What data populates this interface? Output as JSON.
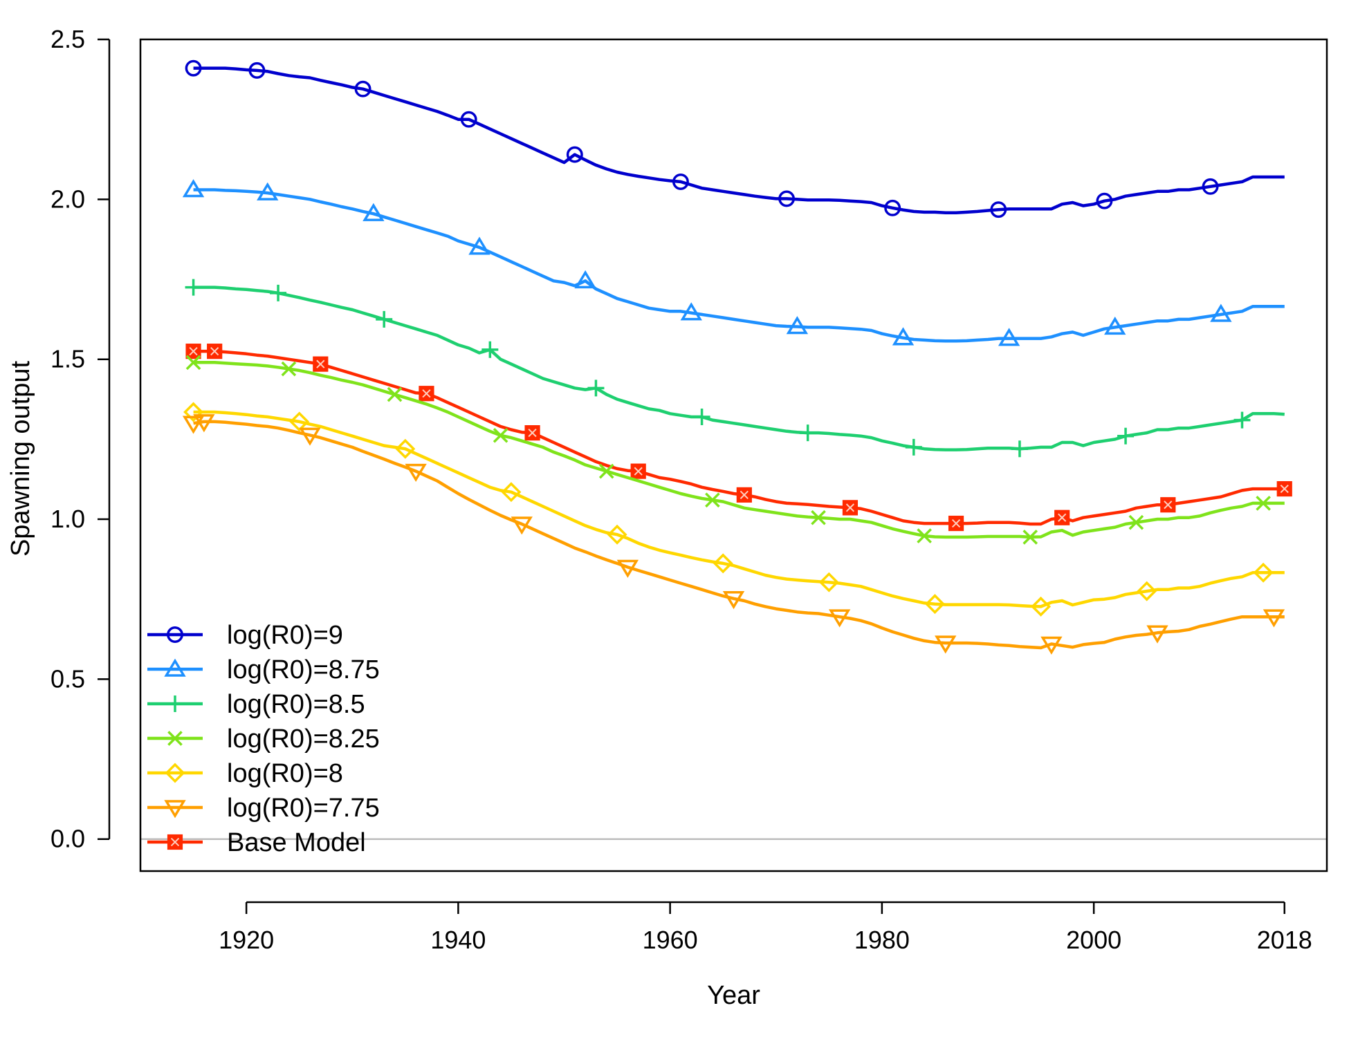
{
  "chart_data": {
    "type": "line",
    "title": "",
    "xlabel": "Year",
    "ylabel": "Spawning output",
    "xlim": [
      1910,
      2022
    ],
    "ylim": [
      -0.1,
      2.5
    ],
    "xticks": [
      1920,
      1940,
      1960,
      1980,
      2000,
      2018
    ],
    "xtick_labels": [
      "1920",
      "1940",
      "1960",
      "1980",
      "2000",
      "2018"
    ],
    "yticks": [
      0,
      0.5,
      1,
      1.5,
      2,
      2.5
    ],
    "ytick_labels": [
      "0.0",
      "0.5",
      "1.0",
      "1.5",
      "2.0",
      "2.5"
    ],
    "reference_line": 0,
    "legend_position": "bottom-left",
    "grid": false,
    "x": [
      1915,
      1916,
      1917,
      1918,
      1919,
      1920,
      1921,
      1922,
      1923,
      1924,
      1925,
      1926,
      1927,
      1928,
      1929,
      1930,
      1931,
      1932,
      1933,
      1934,
      1935,
      1936,
      1937,
      1938,
      1939,
      1940,
      1941,
      1942,
      1943,
      1944,
      1945,
      1946,
      1947,
      1948,
      1949,
      1950,
      1951,
      1952,
      1953,
      1954,
      1955,
      1956,
      1957,
      1958,
      1959,
      1960,
      1961,
      1962,
      1963,
      1964,
      1965,
      1966,
      1967,
      1968,
      1969,
      1970,
      1971,
      1972,
      1973,
      1974,
      1975,
      1976,
      1977,
      1978,
      1979,
      1980,
      1981,
      1982,
      1983,
      1984,
      1985,
      1986,
      1987,
      1988,
      1989,
      1990,
      1991,
      1992,
      1993,
      1994,
      1995,
      1996,
      1997,
      1998,
      1999,
      2000,
      2001,
      2002,
      2003,
      2004,
      2005,
      2006,
      2007,
      2008,
      2009,
      2010,
      2011,
      2012,
      2013,
      2014,
      2015,
      2016,
      2017,
      2018
    ],
    "series": [
      {
        "name": "log(R0)=9",
        "color": "#0000CD",
        "marker": "circle",
        "values": [
          2.41,
          2.41,
          2.41,
          2.41,
          2.408,
          2.405,
          2.403,
          2.4,
          2.393,
          2.387,
          2.383,
          2.38,
          2.372,
          2.365,
          2.358,
          2.35,
          2.345,
          2.335,
          2.325,
          2.315,
          2.305,
          2.295,
          2.285,
          2.275,
          2.263,
          2.25,
          2.25,
          2.235,
          2.22,
          2.205,
          2.19,
          2.175,
          2.16,
          2.145,
          2.13,
          2.115,
          2.14,
          2.123,
          2.107,
          2.095,
          2.085,
          2.078,
          2.072,
          2.067,
          2.062,
          2.058,
          2.055,
          2.045,
          2.035,
          2.03,
          2.025,
          2.02,
          2.015,
          2.01,
          2.006,
          2.002,
          2.002,
          2.0,
          1.998,
          1.998,
          1.998,
          1.997,
          1.995,
          1.993,
          1.99,
          1.98,
          1.973,
          1.967,
          1.962,
          1.96,
          1.96,
          1.958,
          1.958,
          1.96,
          1.962,
          1.965,
          1.968,
          1.97,
          1.97,
          1.97,
          1.97,
          1.97,
          1.985,
          1.99,
          1.98,
          1.985,
          1.995,
          2.0,
          2.01,
          2.015,
          2.02,
          2.025,
          2.025,
          2.03,
          2.03,
          2.035,
          2.04,
          2.045,
          2.05,
          2.055,
          2.07,
          2.07,
          2.07,
          2.07
        ],
        "marker_x": [
          1915,
          1921,
          1931,
          1941,
          1951,
          1961,
          1971,
          1981,
          1991,
          2001,
          2011
        ]
      },
      {
        "name": "log(R0)=8.75",
        "color": "#1E90FF",
        "marker": "triangle-up",
        "values": [
          2.03,
          2.03,
          2.03,
          2.028,
          2.027,
          2.025,
          2.023,
          2.02,
          2.015,
          2.01,
          2.005,
          2.0,
          1.992,
          1.985,
          1.977,
          1.97,
          1.962,
          1.955,
          1.945,
          1.935,
          1.925,
          1.915,
          1.905,
          1.895,
          1.885,
          1.87,
          1.86,
          1.85,
          1.835,
          1.82,
          1.805,
          1.79,
          1.775,
          1.76,
          1.745,
          1.74,
          1.73,
          1.745,
          1.72,
          1.705,
          1.69,
          1.68,
          1.67,
          1.66,
          1.655,
          1.65,
          1.65,
          1.645,
          1.64,
          1.635,
          1.63,
          1.625,
          1.62,
          1.615,
          1.61,
          1.605,
          1.603,
          1.602,
          1.6,
          1.6,
          1.6,
          1.598,
          1.596,
          1.594,
          1.59,
          1.58,
          1.573,
          1.567,
          1.562,
          1.56,
          1.558,
          1.557,
          1.557,
          1.558,
          1.56,
          1.562,
          1.565,
          1.565,
          1.565,
          1.565,
          1.565,
          1.57,
          1.58,
          1.585,
          1.575,
          1.585,
          1.595,
          1.6,
          1.605,
          1.61,
          1.615,
          1.62,
          1.62,
          1.625,
          1.625,
          1.63,
          1.635,
          1.64,
          1.645,
          1.65,
          1.665,
          1.665,
          1.665,
          1.665
        ],
        "marker_x": [
          1915,
          1922,
          1932,
          1942,
          1952,
          1962,
          1972,
          1982,
          1992,
          2002,
          2012
        ]
      },
      {
        "name": "log(R0)=8.5",
        "color": "#1ECF70",
        "marker": "plus",
        "values": [
          1.725,
          1.725,
          1.725,
          1.723,
          1.72,
          1.718,
          1.715,
          1.712,
          1.707,
          1.7,
          1.693,
          1.685,
          1.678,
          1.67,
          1.662,
          1.655,
          1.645,
          1.635,
          1.625,
          1.615,
          1.605,
          1.595,
          1.585,
          1.575,
          1.56,
          1.545,
          1.535,
          1.52,
          1.53,
          1.5,
          1.485,
          1.47,
          1.455,
          1.44,
          1.43,
          1.42,
          1.41,
          1.405,
          1.41,
          1.39,
          1.375,
          1.365,
          1.355,
          1.345,
          1.34,
          1.33,
          1.325,
          1.32,
          1.32,
          1.31,
          1.305,
          1.3,
          1.295,
          1.29,
          1.285,
          1.28,
          1.275,
          1.272,
          1.27,
          1.27,
          1.268,
          1.265,
          1.263,
          1.26,
          1.255,
          1.245,
          1.238,
          1.23,
          1.225,
          1.22,
          1.218,
          1.217,
          1.217,
          1.218,
          1.22,
          1.222,
          1.222,
          1.222,
          1.22,
          1.222,
          1.225,
          1.225,
          1.24,
          1.24,
          1.23,
          1.24,
          1.245,
          1.25,
          1.26,
          1.265,
          1.27,
          1.28,
          1.28,
          1.285,
          1.285,
          1.29,
          1.295,
          1.3,
          1.305,
          1.31,
          1.33,
          1.33,
          1.33,
          1.328
        ],
        "marker_x": [
          1915,
          1923,
          1933,
          1943,
          1953,
          1963,
          1973,
          1983,
          1993,
          2003,
          2014
        ]
      },
      {
        "name": "log(R0)=8.25",
        "color": "#7FE31B",
        "marker": "cross",
        "values": [
          1.49,
          1.49,
          1.49,
          1.488,
          1.486,
          1.484,
          1.482,
          1.479,
          1.475,
          1.47,
          1.465,
          1.458,
          1.45,
          1.443,
          1.435,
          1.428,
          1.42,
          1.41,
          1.4,
          1.39,
          1.38,
          1.37,
          1.36,
          1.348,
          1.335,
          1.32,
          1.305,
          1.29,
          1.275,
          1.262,
          1.255,
          1.245,
          1.235,
          1.225,
          1.21,
          1.198,
          1.185,
          1.17,
          1.16,
          1.15,
          1.14,
          1.13,
          1.12,
          1.11,
          1.1,
          1.09,
          1.08,
          1.072,
          1.065,
          1.06,
          1.055,
          1.045,
          1.035,
          1.03,
          1.025,
          1.02,
          1.015,
          1.01,
          1.007,
          1.005,
          1.003,
          1.0,
          1.0,
          0.995,
          0.99,
          0.98,
          0.97,
          0.962,
          0.955,
          0.948,
          0.945,
          0.944,
          0.944,
          0.944,
          0.945,
          0.946,
          0.946,
          0.946,
          0.946,
          0.944,
          0.945,
          0.96,
          0.965,
          0.95,
          0.96,
          0.965,
          0.97,
          0.975,
          0.985,
          0.99,
          0.995,
          1.0,
          1.0,
          1.005,
          1.005,
          1.01,
          1.02,
          1.028,
          1.035,
          1.04,
          1.05,
          1.05,
          1.05,
          1.05
        ],
        "marker_x": [
          1915,
          1924,
          1934,
          1944,
          1954,
          1964,
          1974,
          1984,
          1994,
          2004,
          2016
        ]
      },
      {
        "name": "log(R0)=8",
        "color": "#FFD700",
        "marker": "diamond",
        "values": [
          1.335,
          1.335,
          1.335,
          1.333,
          1.33,
          1.327,
          1.323,
          1.32,
          1.315,
          1.31,
          1.305,
          1.297,
          1.29,
          1.28,
          1.27,
          1.26,
          1.25,
          1.24,
          1.23,
          1.225,
          1.22,
          1.205,
          1.19,
          1.175,
          1.16,
          1.145,
          1.13,
          1.115,
          1.1,
          1.09,
          1.085,
          1.07,
          1.055,
          1.04,
          1.025,
          1.01,
          0.995,
          0.98,
          0.968,
          0.958,
          0.952,
          0.94,
          0.925,
          0.913,
          0.903,
          0.895,
          0.888,
          0.88,
          0.873,
          0.867,
          0.862,
          0.855,
          0.845,
          0.835,
          0.825,
          0.818,
          0.813,
          0.81,
          0.807,
          0.805,
          0.803,
          0.8,
          0.795,
          0.79,
          0.78,
          0.77,
          0.76,
          0.752,
          0.745,
          0.738,
          0.735,
          0.733,
          0.733,
          0.733,
          0.733,
          0.733,
          0.733,
          0.732,
          0.73,
          0.728,
          0.727,
          0.74,
          0.745,
          0.732,
          0.74,
          0.748,
          0.75,
          0.755,
          0.765,
          0.77,
          0.775,
          0.78,
          0.78,
          0.785,
          0.785,
          0.79,
          0.8,
          0.808,
          0.815,
          0.82,
          0.833,
          0.833,
          0.833,
          0.833
        ],
        "marker_x": [
          1915,
          1925,
          1935,
          1945,
          1955,
          1965,
          1975,
          1985,
          1995,
          2005,
          2016
        ]
      },
      {
        "name": "log(R0)=7.75",
        "color": "#FF9F00",
        "marker": "triangle-down",
        "values": [
          1.3,
          1.305,
          1.305,
          1.303,
          1.3,
          1.297,
          1.293,
          1.29,
          1.285,
          1.278,
          1.27,
          1.263,
          1.255,
          1.245,
          1.235,
          1.225,
          1.212,
          1.2,
          1.188,
          1.175,
          1.163,
          1.15,
          1.135,
          1.12,
          1.1,
          1.08,
          1.062,
          1.045,
          1.028,
          1.012,
          0.998,
          0.985,
          0.97,
          0.955,
          0.94,
          0.925,
          0.91,
          0.898,
          0.885,
          0.873,
          0.862,
          0.85,
          0.84,
          0.83,
          0.82,
          0.81,
          0.8,
          0.79,
          0.78,
          0.77,
          0.76,
          0.752,
          0.745,
          0.735,
          0.727,
          0.72,
          0.715,
          0.71,
          0.707,
          0.705,
          0.7,
          0.695,
          0.69,
          0.683,
          0.673,
          0.66,
          0.648,
          0.638,
          0.628,
          0.62,
          0.615,
          0.613,
          0.613,
          0.613,
          0.612,
          0.61,
          0.607,
          0.605,
          0.602,
          0.6,
          0.598,
          0.61,
          0.605,
          0.6,
          0.608,
          0.612,
          0.615,
          0.625,
          0.632,
          0.637,
          0.64,
          0.645,
          0.648,
          0.65,
          0.655,
          0.665,
          0.672,
          0.68,
          0.688,
          0.695,
          0.695,
          0.695,
          0.695,
          0.695
        ],
        "marker_x": [
          1915,
          1916,
          1926,
          1936,
          1946,
          1956,
          1966,
          1976,
          1986,
          1996,
          2006,
          2017
        ]
      },
      {
        "name": "Base Model",
        "color": "#FF2A00",
        "marker": "square",
        "values": [
          1.525,
          1.525,
          1.525,
          1.523,
          1.52,
          1.517,
          1.513,
          1.51,
          1.505,
          1.5,
          1.495,
          1.49,
          1.485,
          1.475,
          1.465,
          1.455,
          1.445,
          1.435,
          1.425,
          1.415,
          1.405,
          1.395,
          1.393,
          1.38,
          1.365,
          1.35,
          1.335,
          1.32,
          1.305,
          1.29,
          1.28,
          1.272,
          1.27,
          1.255,
          1.24,
          1.225,
          1.21,
          1.195,
          1.18,
          1.168,
          1.158,
          1.152,
          1.15,
          1.14,
          1.13,
          1.125,
          1.118,
          1.11,
          1.1,
          1.093,
          1.087,
          1.08,
          1.076,
          1.07,
          1.062,
          1.055,
          1.05,
          1.048,
          1.046,
          1.043,
          1.04,
          1.038,
          1.036,
          1.033,
          1.025,
          1.015,
          1.005,
          0.995,
          0.99,
          0.987,
          0.987,
          0.987,
          0.987,
          0.987,
          0.988,
          0.99,
          0.99,
          0.99,
          0.988,
          0.985,
          0.985,
          1.0,
          1.005,
          0.995,
          1.005,
          1.01,
          1.015,
          1.02,
          1.025,
          1.035,
          1.04,
          1.045,
          1.045,
          1.05,
          1.055,
          1.06,
          1.065,
          1.07,
          1.08,
          1.09,
          1.095,
          1.095,
          1.095,
          1.095
        ],
        "marker_x": [
          1915,
          1917,
          1927,
          1937,
          1947,
          1957,
          1967,
          1977,
          1987,
          1997,
          2007,
          2018
        ]
      }
    ]
  }
}
